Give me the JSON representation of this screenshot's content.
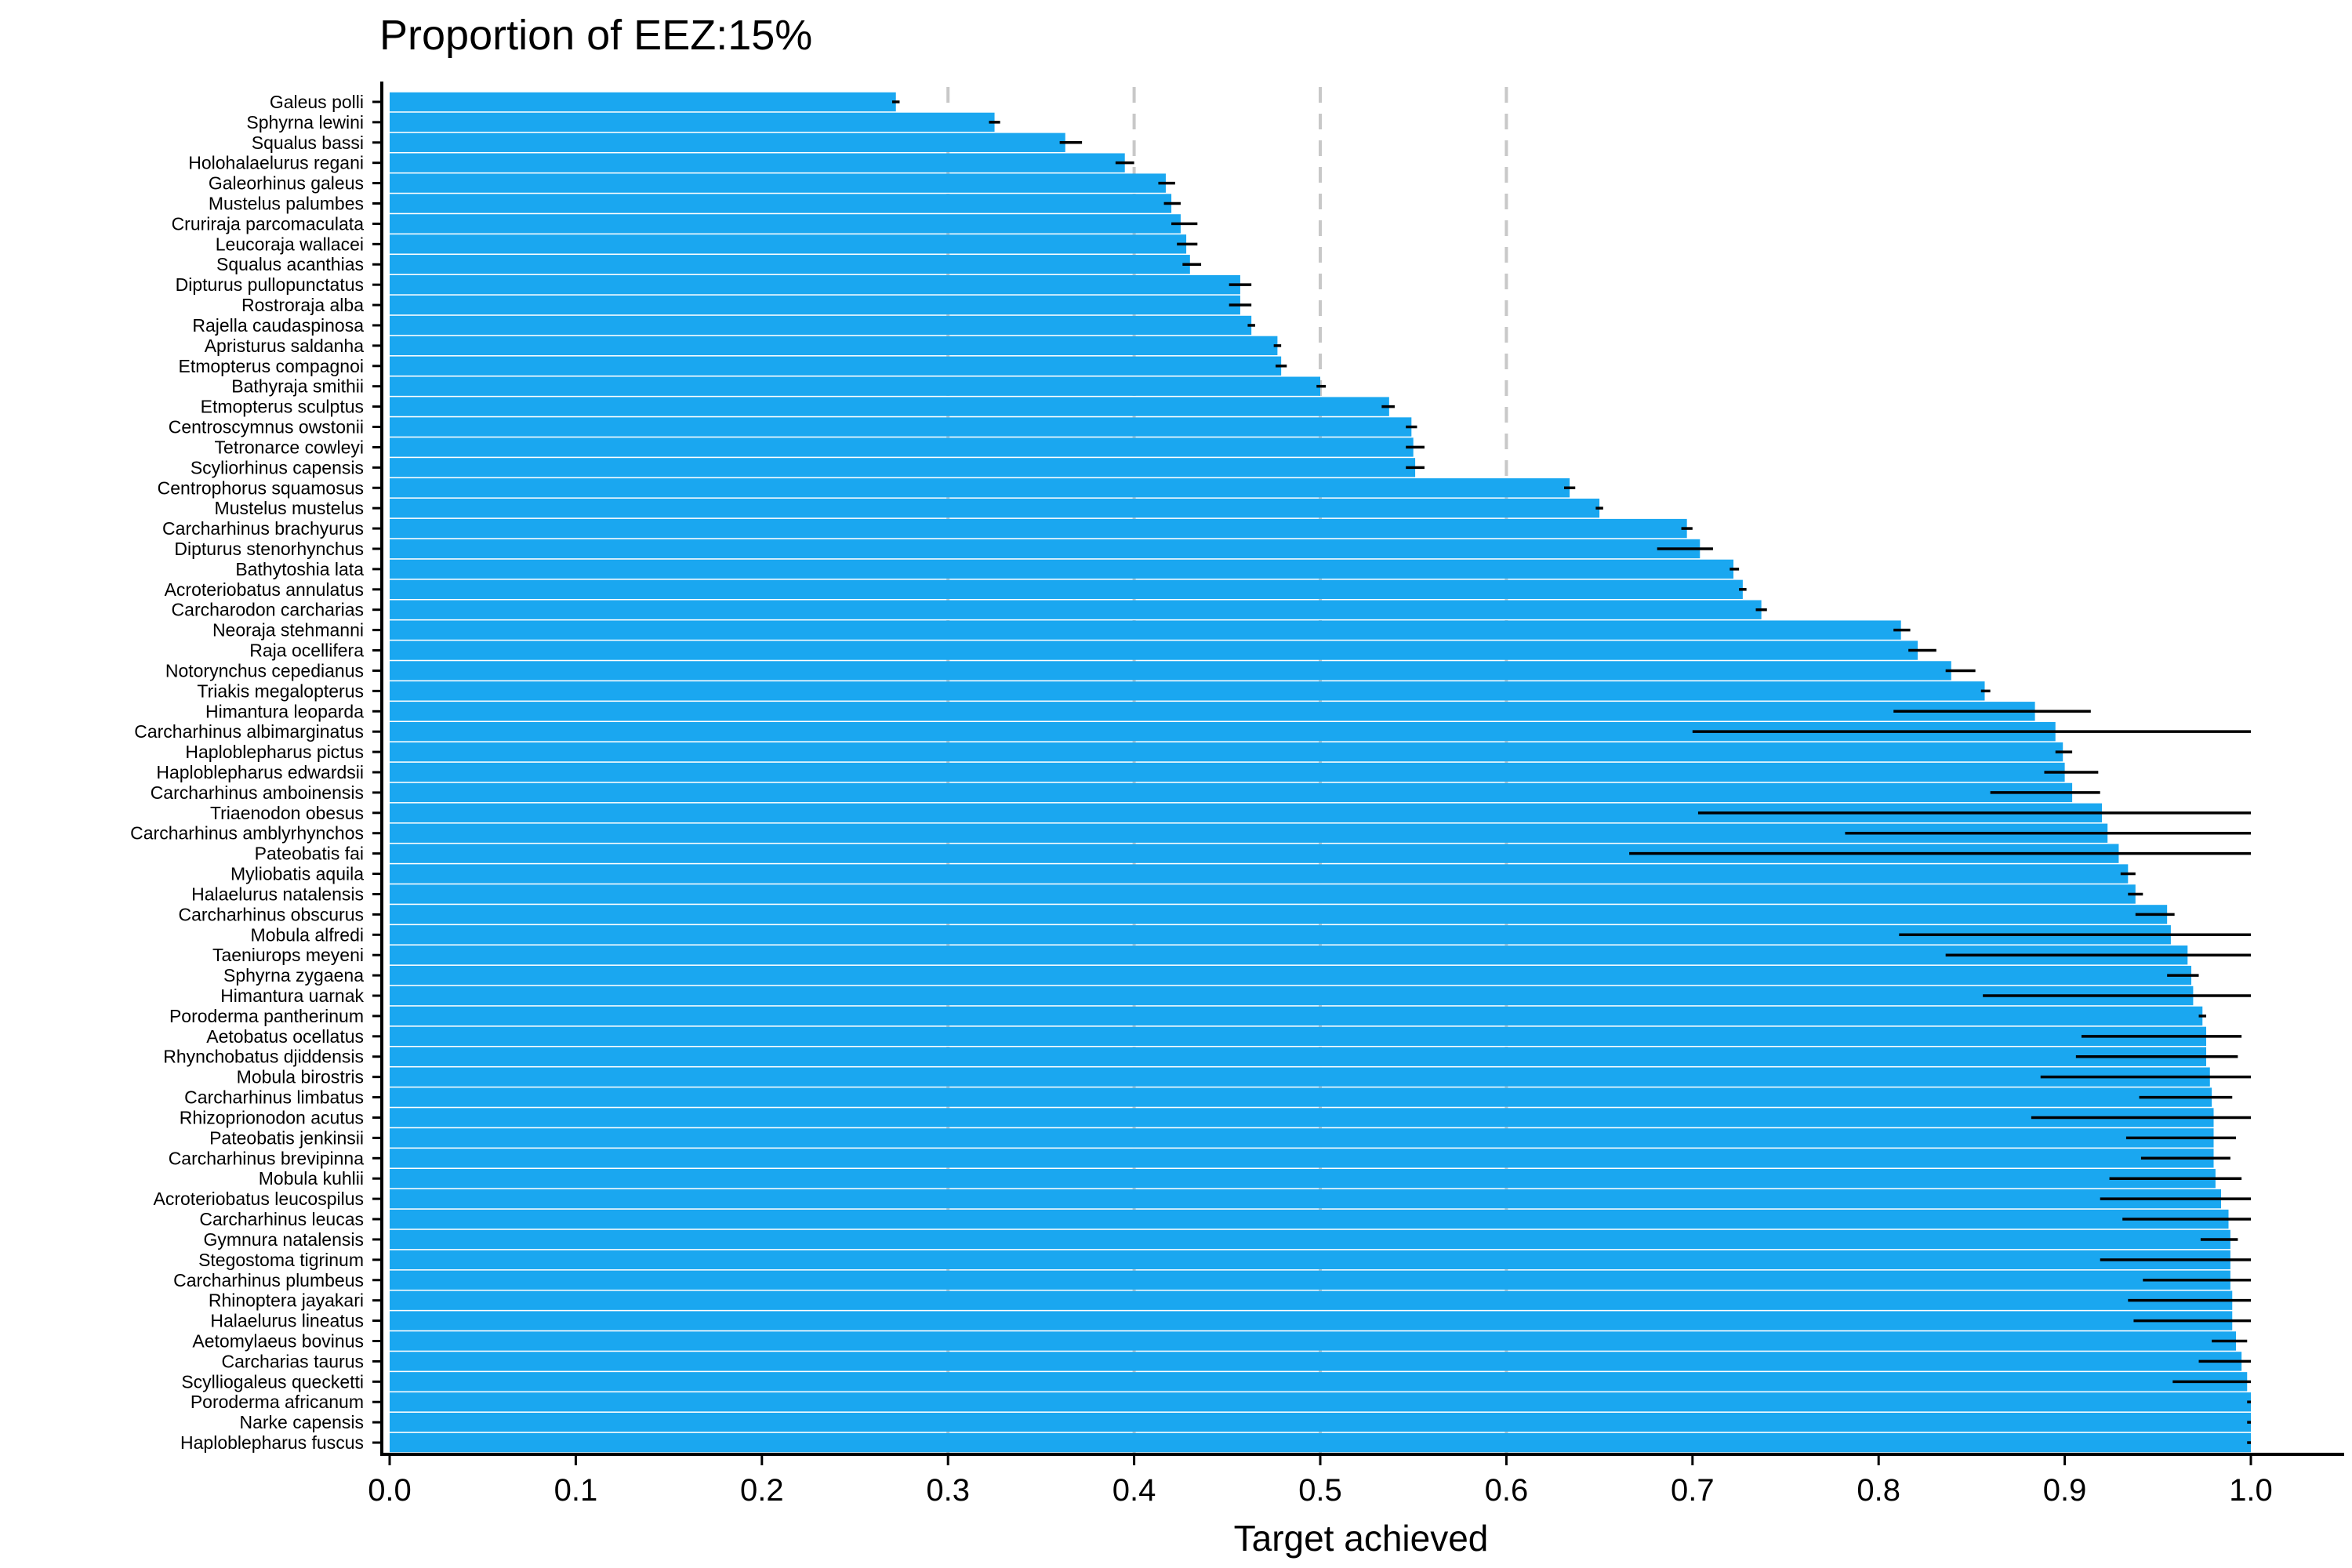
{
  "chart_data": {
    "type": "bar",
    "orientation": "horizontal",
    "title": "Proportion of EEZ:15%",
    "xlabel": "Target achieved",
    "ylabel": "",
    "xlim": [
      0.0,
      1.0
    ],
    "xticks": [
      "0.0",
      "0.1",
      "0.2",
      "0.3",
      "0.4",
      "0.5",
      "0.6",
      "0.7",
      "0.8",
      "0.9",
      "1.0"
    ],
    "reference_lines": [
      0.3,
      0.4,
      0.5,
      0.6
    ],
    "bar_color": "#1aa7f0",
    "errorbar_color": "#000000",
    "grid": false,
    "legend": "none",
    "categories": [
      "Galeus polli",
      "Sphyrna lewini",
      "Squalus bassi",
      "Holohalaelurus regani",
      "Galeorhinus galeus",
      "Mustelus palumbes",
      "Cruriraja parcomaculata",
      "Leucoraja wallacei",
      "Squalus acanthias",
      "Dipturus pullopunctatus",
      "Rostroraja alba",
      "Rajella caudaspinosa",
      "Apristurus saldanha",
      "Etmopterus compagnoi",
      "Bathyraja smithii",
      "Etmopterus sculptus",
      "Centroscymnus owstonii",
      "Tetronarce cowleyi",
      "Scyliorhinus capensis",
      "Centrophorus squamosus",
      "Mustelus mustelus",
      "Carcharhinus brachyurus",
      "Dipturus stenorhynchus",
      "Bathytoshia lata",
      "Acroteriobatus annulatus",
      "Carcharodon carcharias",
      "Neoraja stehmanni",
      "Raja ocellifera",
      "Notorynchus cepedianus",
      "Triakis megalopterus",
      "Himantura leoparda",
      "Carcharhinus albimarginatus",
      "Haploblepharus pictus",
      "Haploblepharus edwardsii",
      "Carcharhinus amboinensis",
      "Triaenodon obesus",
      "Carcharhinus amblyrhynchos",
      "Pateobatis fai",
      "Myliobatis aquila",
      "Halaelurus natalensis",
      "Carcharhinus obscurus",
      "Mobula alfredi",
      "Taeniurops meyeni",
      "Sphyrna zygaena",
      "Himantura uarnak",
      "Poroderma pantherinum",
      "Aetobatus ocellatus",
      "Rhynchobatus djiddensis",
      "Mobula birostris",
      "Carcharhinus limbatus",
      "Rhizoprionodon acutus",
      "Pateobatis jenkinsii",
      "Carcharhinus brevipinna",
      "Mobula kuhlii",
      "Acroteriobatus leucospilus",
      "Carcharhinus leucas",
      "Gymnura natalensis",
      "Stegostoma tigrinum",
      "Carcharhinus plumbeus",
      "Rhinoptera jayakari",
      "Halaelurus lineatus",
      "Aetomylaeus bovinus",
      "Carcharias taurus",
      "Scylliogaleus quecketti",
      "Poroderma africanum",
      "Narke capensis",
      "Haploblepharus fuscus"
    ],
    "values": [
      0.272,
      0.325,
      0.363,
      0.395,
      0.417,
      0.42,
      0.425,
      0.428,
      0.43,
      0.457,
      0.457,
      0.463,
      0.477,
      0.479,
      0.5,
      0.537,
      0.549,
      0.55,
      0.551,
      0.634,
      0.65,
      0.697,
      0.704,
      0.722,
      0.727,
      0.737,
      0.812,
      0.821,
      0.839,
      0.857,
      0.884,
      0.895,
      0.899,
      0.9,
      0.904,
      0.92,
      0.923,
      0.929,
      0.934,
      0.938,
      0.955,
      0.957,
      0.966,
      0.968,
      0.969,
      0.974,
      0.976,
      0.976,
      0.978,
      0.979,
      0.98,
      0.98,
      0.98,
      0.981,
      0.984,
      0.988,
      0.989,
      0.989,
      0.989,
      0.99,
      0.99,
      0.992,
      0.995,
      0.998,
      1.0,
      1.0,
      1.0
    ],
    "error_low": [
      0.27,
      0.322,
      0.36,
      0.39,
      0.413,
      0.416,
      0.42,
      0.423,
      0.426,
      0.451,
      0.451,
      0.461,
      0.475,
      0.476,
      0.498,
      0.533,
      0.546,
      0.546,
      0.546,
      0.631,
      0.648,
      0.694,
      0.681,
      0.72,
      0.725,
      0.734,
      0.808,
      0.816,
      0.836,
      0.855,
      0.808,
      0.7,
      0.895,
      0.889,
      0.86,
      0.703,
      0.782,
      0.666,
      0.93,
      0.934,
      0.938,
      0.811,
      0.836,
      0.955,
      0.856,
      0.972,
      0.909,
      0.906,
      0.887,
      0.94,
      0.882,
      0.933,
      0.941,
      0.924,
      0.919,
      0.931,
      0.973,
      0.919,
      0.942,
      0.934,
      0.937,
      0.979,
      0.972,
      0.958,
      0.998,
      0.998,
      0.998
    ],
    "error_high": [
      0.274,
      0.328,
      0.372,
      0.4,
      0.422,
      0.425,
      0.434,
      0.434,
      0.436,
      0.463,
      0.463,
      0.465,
      0.479,
      0.482,
      0.503,
      0.54,
      0.552,
      0.556,
      0.556,
      0.637,
      0.652,
      0.7,
      0.711,
      0.725,
      0.729,
      0.74,
      0.817,
      0.831,
      0.852,
      0.86,
      0.914,
      1.0,
      0.904,
      0.918,
      0.919,
      1.0,
      1.0,
      1.0,
      0.938,
      0.942,
      0.959,
      1.0,
      1.0,
      0.972,
      1.0,
      0.976,
      0.995,
      0.993,
      1.0,
      0.99,
      1.0,
      0.992,
      0.989,
      0.995,
      1.0,
      1.0,
      0.993,
      1.0,
      1.0,
      1.0,
      1.0,
      0.998,
      1.0,
      1.0,
      1.0,
      1.0,
      1.0
    ]
  }
}
